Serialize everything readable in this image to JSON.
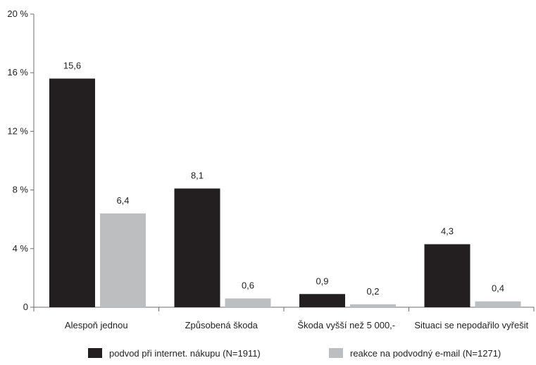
{
  "chart_data": {
    "type": "bar",
    "title": "",
    "xlabel": "",
    "ylabel": "",
    "categories": [
      "Alespoň jednou",
      "Způsobená škoda",
      "Škoda vyšší než 5 000,-",
      "Situaci se nepodařilo vyřešit"
    ],
    "series": [
      {
        "name": "podvod při internet. nákupu (N=1911)",
        "color": "#231f20",
        "values": [
          15.6,
          8.1,
          0.9,
          4.3
        ],
        "labels": [
          "15,6",
          "8,1",
          "0,9",
          "4,3"
        ]
      },
      {
        "name": "reakce na podvodný e-mail (N=1271)",
        "color": "#bcbec0",
        "values": [
          6.4,
          0.6,
          0.2,
          0.4
        ],
        "labels": [
          "6,4",
          "0,6",
          "0,2",
          "0,4"
        ]
      }
    ],
    "ylim": [
      0,
      20
    ],
    "yticks": [
      {
        "value": 0,
        "label": "0"
      },
      {
        "value": 4,
        "label": "4 %"
      },
      {
        "value": 8,
        "label": "8 %"
      },
      {
        "value": 12,
        "label": "12 %"
      },
      {
        "value": 16,
        "label": "16 %"
      },
      {
        "value": 20,
        "label": "20 %"
      }
    ],
    "grid": false,
    "legend_position": "bottom"
  }
}
